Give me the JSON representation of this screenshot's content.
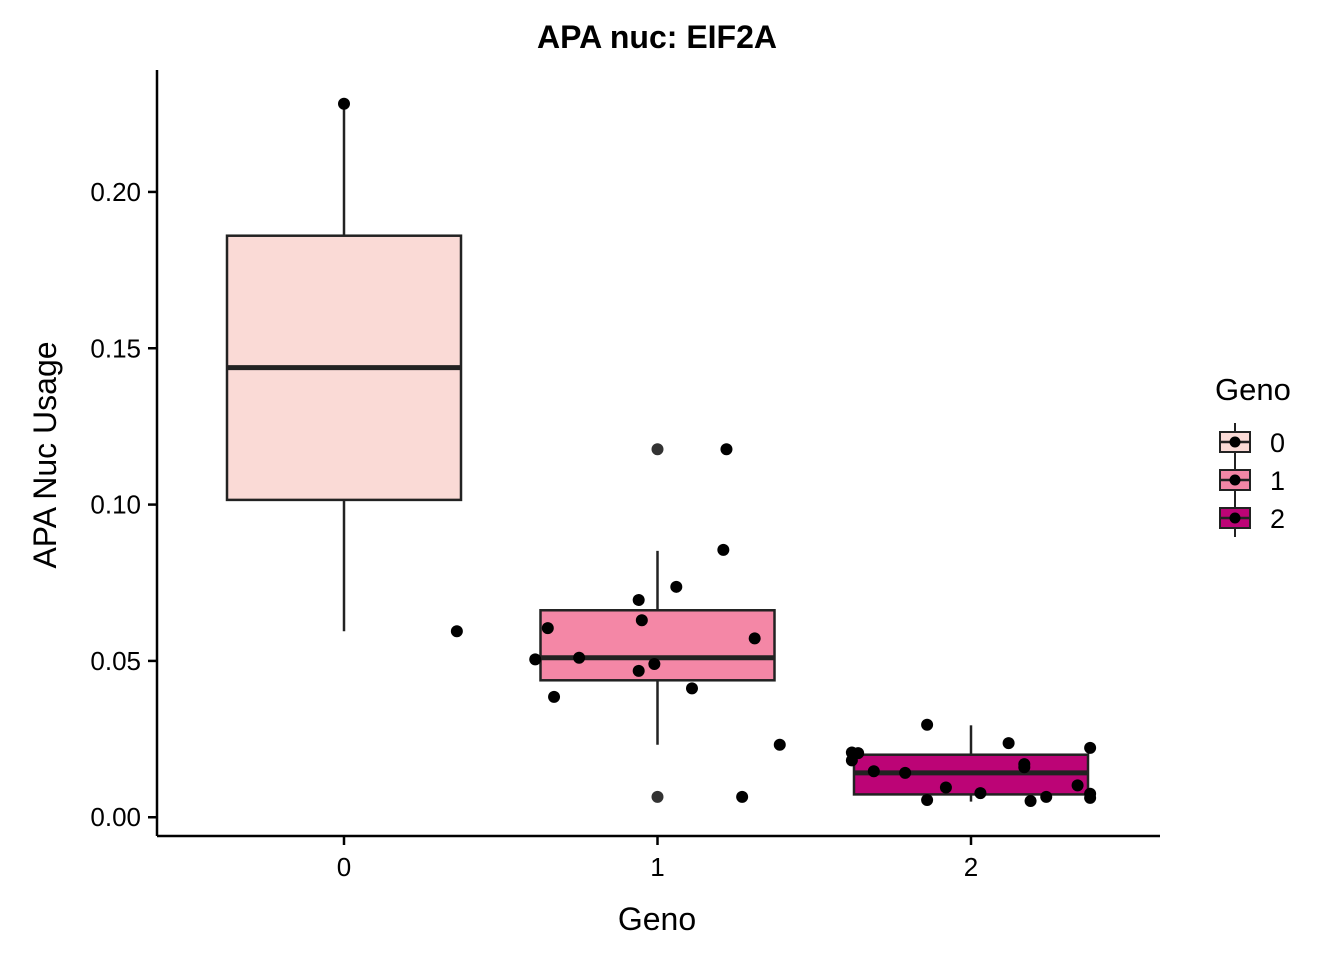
{
  "chart_data": {
    "type": "box",
    "title": "APA nuc: EIF2A",
    "xlabel": "Geno",
    "ylabel": "APA Nuc Usage",
    "categories": [
      "0",
      "1",
      "2"
    ],
    "ylim": [
      -0.006,
      0.239
    ],
    "yticks": [
      "0.00",
      "0.05",
      "0.10",
      "0.15",
      "0.20"
    ],
    "grid": false,
    "legend": {
      "title": "Geno",
      "position": "right",
      "entries": [
        "0",
        "1",
        "2"
      ]
    },
    "boxes": [
      {
        "category": "0",
        "color": "#FADAD6",
        "whisker_low": 0.0595,
        "q1": 0.1015,
        "median": 0.1438,
        "q3": 0.186,
        "whisker_high": 0.2282,
        "outliers": []
      },
      {
        "category": "1",
        "color": "#F487A6",
        "whisker_low": 0.0232,
        "q1": 0.0438,
        "median": 0.051,
        "q3": 0.0662,
        "whisker_high": 0.0852,
        "outliers": [
          0.1177,
          0.0065
        ]
      },
      {
        "category": "2",
        "color": "#BC0476",
        "whisker_low": 0.005,
        "q1": 0.0073,
        "median": 0.0142,
        "q3": 0.02,
        "whisker_high": 0.0294,
        "outliers": []
      }
    ],
    "points": [
      {
        "category": "0",
        "x": 0.0,
        "y": 0.2282
      },
      {
        "category": "0",
        "x": 0.36,
        "y": 0.0595
      },
      {
        "category": "1",
        "x": 0.61,
        "y": 0.0505
      },
      {
        "category": "1",
        "x": 0.65,
        "y": 0.0605
      },
      {
        "category": "1",
        "x": 0.67,
        "y": 0.0385
      },
      {
        "category": "1",
        "x": 0.75,
        "y": 0.051
      },
      {
        "category": "1",
        "x": 0.94,
        "y": 0.0695
      },
      {
        "category": "1",
        "x": 0.95,
        "y": 0.063
      },
      {
        "category": "1",
        "x": 0.94,
        "y": 0.0468
      },
      {
        "category": "1",
        "x": 0.99,
        "y": 0.049
      },
      {
        "category": "1",
        "x": 1.06,
        "y": 0.0737
      },
      {
        "category": "1",
        "x": 1.11,
        "y": 0.0412
      },
      {
        "category": "1",
        "x": 1.21,
        "y": 0.0855
      },
      {
        "category": "1",
        "x": 1.22,
        "y": 0.1177
      },
      {
        "category": "1",
        "x": 1.27,
        "y": 0.0065
      },
      {
        "category": "1",
        "x": 1.31,
        "y": 0.0572
      },
      {
        "category": "1",
        "x": 1.39,
        "y": 0.0232
      },
      {
        "category": "2",
        "x": 1.62,
        "y": 0.0207
      },
      {
        "category": "2",
        "x": 1.62,
        "y": 0.0182
      },
      {
        "category": "2",
        "x": 1.64,
        "y": 0.0205
      },
      {
        "category": "2",
        "x": 1.69,
        "y": 0.0147
      },
      {
        "category": "2",
        "x": 1.79,
        "y": 0.0142
      },
      {
        "category": "2",
        "x": 1.86,
        "y": 0.0296
      },
      {
        "category": "2",
        "x": 1.86,
        "y": 0.0055
      },
      {
        "category": "2",
        "x": 1.92,
        "y": 0.0095
      },
      {
        "category": "2",
        "x": 2.03,
        "y": 0.0077
      },
      {
        "category": "2",
        "x": 2.12,
        "y": 0.0237
      },
      {
        "category": "2",
        "x": 2.17,
        "y": 0.017
      },
      {
        "category": "2",
        "x": 2.17,
        "y": 0.016
      },
      {
        "category": "2",
        "x": 2.19,
        "y": 0.0052
      },
      {
        "category": "2",
        "x": 2.24,
        "y": 0.0065
      },
      {
        "category": "2",
        "x": 2.34,
        "y": 0.0102
      },
      {
        "category": "2",
        "x": 2.38,
        "y": 0.0222
      },
      {
        "category": "2",
        "x": 2.38,
        "y": 0.0075
      },
      {
        "category": "2",
        "x": 2.38,
        "y": 0.0062
      }
    ]
  }
}
